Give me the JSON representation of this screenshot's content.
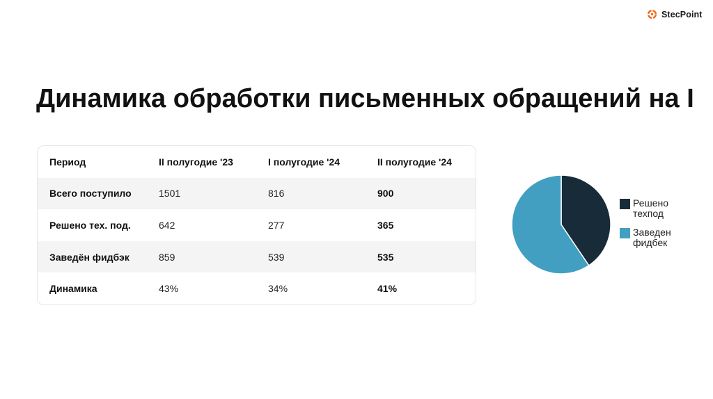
{
  "brand": {
    "name": "StecPoint",
    "accent": "#f26a1b"
  },
  "title": "Динамика обработки письменных обращений на I",
  "table": {
    "headers": [
      "Период",
      "II полугодие '23",
      "I полугодие '24",
      "II полугодие '24"
    ],
    "rows": [
      {
        "label": "Всего поступило",
        "values": [
          "1501",
          "816",
          "900"
        ]
      },
      {
        "label": "Решено тех. под.",
        "values": [
          "642",
          "277",
          "365"
        ]
      },
      {
        "label": "Заведён фидбэк",
        "values": [
          "859",
          "539",
          "535"
        ]
      },
      {
        "label": "Динамика",
        "values": [
          "43%",
          "34%",
          "41%"
        ]
      }
    ]
  },
  "chart_data": {
    "type": "pie",
    "series": [
      {
        "name": "Решено техпод",
        "legend_lines": [
          "Решено",
          "техпод"
        ],
        "value": 365,
        "color": "#172c38"
      },
      {
        "name": "Заведен фидбек",
        "legend_lines": [
          "Заведен",
          "фидбек"
        ],
        "value": 535,
        "color": "#429fc1"
      }
    ],
    "legend_position": "right"
  }
}
